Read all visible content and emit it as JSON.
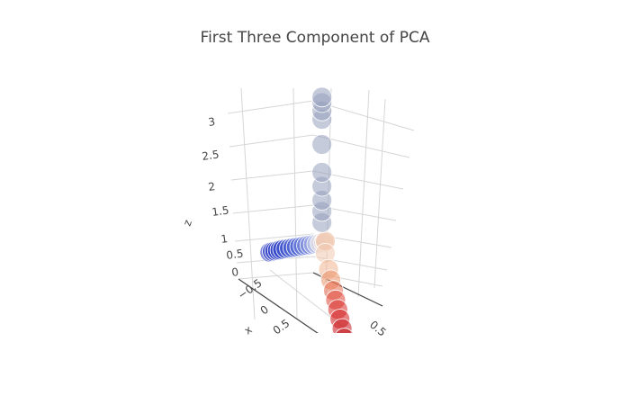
{
  "chart_data": {
    "type": "scatter3d",
    "title": "First Three Component of PCA",
    "axes": {
      "x": {
        "title": "x",
        "ticks": [
          "−0.5",
          "0",
          "0.5"
        ]
      },
      "y": {
        "title": "",
        "ticks": [
          "0.5"
        ]
      },
      "z": {
        "title": "z",
        "ticks": [
          "0",
          "0.5",
          "1",
          "1.5",
          "2",
          "2.5",
          "3"
        ],
        "range": [
          0,
          3
        ]
      }
    },
    "colorscale": [
      "#1f2fbf",
      "#5a6fd6",
      "#f2f2f2",
      "#f0a070",
      "#d62020",
      "#a80010"
    ],
    "points": [
      {
        "x": -0.55,
        "y": 0.0,
        "z": 0.32,
        "c": 0.0
      },
      {
        "x": -0.52,
        "y": 0.0,
        "z": 0.33,
        "c": 0.02
      },
      {
        "x": -0.49,
        "y": 0.0,
        "z": 0.34,
        "c": 0.04
      },
      {
        "x": -0.46,
        "y": 0.0,
        "z": 0.35,
        "c": 0.06
      },
      {
        "x": -0.43,
        "y": 0.0,
        "z": 0.36,
        "c": 0.08
      },
      {
        "x": -0.4,
        "y": 0.0,
        "z": 0.37,
        "c": 0.1
      },
      {
        "x": -0.36,
        "y": 0.0,
        "z": 0.38,
        "c": 0.12
      },
      {
        "x": -0.32,
        "y": 0.0,
        "z": 0.39,
        "c": 0.14
      },
      {
        "x": -0.28,
        "y": 0.0,
        "z": 0.4,
        "c": 0.16
      },
      {
        "x": -0.24,
        "y": 0.0,
        "z": 0.41,
        "c": 0.18
      },
      {
        "x": -0.2,
        "y": 0.0,
        "z": 0.42,
        "c": 0.2
      },
      {
        "x": -0.16,
        "y": 0.0,
        "z": 0.43,
        "c": 0.22
      },
      {
        "x": -0.12,
        "y": 0.0,
        "z": 0.44,
        "c": 0.24
      },
      {
        "x": -0.08,
        "y": 0.0,
        "z": 0.45,
        "c": 0.26
      },
      {
        "x": -0.04,
        "y": 0.0,
        "z": 0.46,
        "c": 0.3
      },
      {
        "x": 0.0,
        "y": 0.0,
        "z": 0.47,
        "c": 0.35
      },
      {
        "x": 0.04,
        "y": 0.0,
        "z": 0.48,
        "c": 0.42
      },
      {
        "x": 0.08,
        "y": 0.0,
        "z": 0.49,
        "c": 0.48
      },
      {
        "x": 0.1,
        "y": 0.0,
        "z": 0.5,
        "c": 0.5
      },
      {
        "x": 0.1,
        "y": 0.0,
        "z": 0.52,
        "c": 0.5
      },
      {
        "x": 0.06,
        "y": 0.0,
        "z": 0.85,
        "c": 0.3
      },
      {
        "x": 0.06,
        "y": 0.0,
        "z": 1.05,
        "c": 0.3
      },
      {
        "x": 0.06,
        "y": 0.0,
        "z": 1.25,
        "c": 0.3
      },
      {
        "x": 0.06,
        "y": 0.0,
        "z": 1.5,
        "c": 0.3
      },
      {
        "x": 0.06,
        "y": 0.0,
        "z": 1.75,
        "c": 0.3
      },
      {
        "x": 0.06,
        "y": 0.0,
        "z": 2.25,
        "c": 0.3
      },
      {
        "x": 0.06,
        "y": 0.0,
        "z": 2.7,
        "c": 0.3
      },
      {
        "x": 0.06,
        "y": 0.0,
        "z": 2.85,
        "c": 0.3
      },
      {
        "x": 0.06,
        "y": 0.0,
        "z": 3.0,
        "c": 0.3
      },
      {
        "x": 0.06,
        "y": 0.0,
        "z": 3.1,
        "c": 0.3
      },
      {
        "x": 0.1,
        "y": 0.0,
        "z": 0.3,
        "c": 0.5
      },
      {
        "x": 0.1,
        "y": 0.12,
        "z": 0.12,
        "c": 0.55
      },
      {
        "x": 0.1,
        "y": 0.2,
        "z": 0.0,
        "c": 0.62
      },
      {
        "x": 0.1,
        "y": 0.3,
        "z": -0.1,
        "c": 0.68
      },
      {
        "x": 0.1,
        "y": 0.38,
        "z": -0.2,
        "c": 0.74
      },
      {
        "x": 0.1,
        "y": 0.46,
        "z": -0.3,
        "c": 0.78
      },
      {
        "x": 0.1,
        "y": 0.54,
        "z": -0.4,
        "c": 0.82
      },
      {
        "x": 0.1,
        "y": 0.62,
        "z": -0.5,
        "c": 0.86
      },
      {
        "x": 0.1,
        "y": 0.7,
        "z": -0.6,
        "c": 0.9
      },
      {
        "x": 0.1,
        "y": 0.78,
        "z": -0.7,
        "c": 0.94
      },
      {
        "x": 0.1,
        "y": 0.86,
        "z": -0.8,
        "c": 0.97
      },
      {
        "x": 0.1,
        "y": 0.94,
        "z": -0.9,
        "c": 1.0
      }
    ]
  }
}
